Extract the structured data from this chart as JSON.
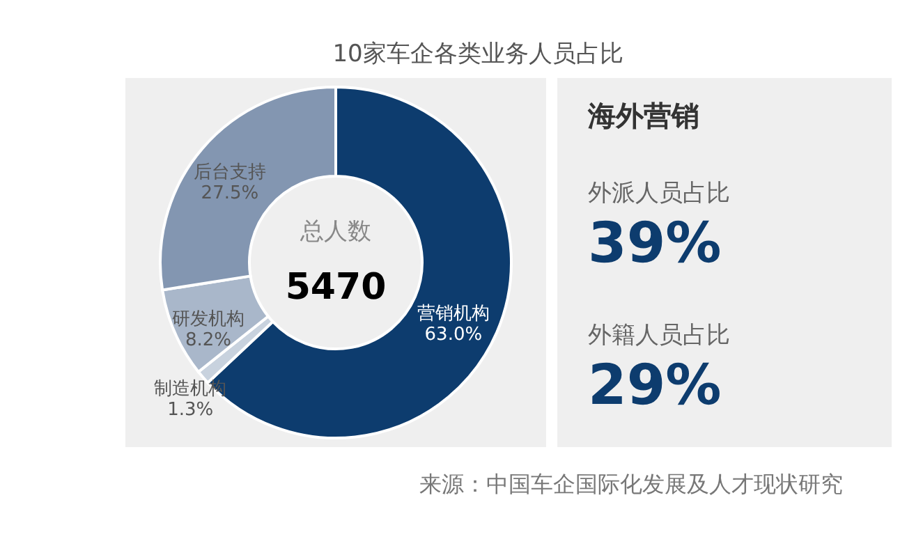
{
  "chart_data": [
    {
      "type": "donut",
      "title": "10家车企各类业务人员占比",
      "categories": [
        "营销机构",
        "制造机构",
        "研发机构",
        "后台支持"
      ],
      "values": [
        63.0,
        1.3,
        8.2,
        27.5
      ],
      "colors": [
        "#0d3c6e",
        "#c8d2de",
        "#a9b7ca",
        "#8396b1"
      ],
      "value_labels": [
        "63.0%",
        "1.3%",
        "8.2%",
        "27.5%"
      ],
      "annotations": [
        "总人数",
        "5470",
        "来源：中国车企国际化发展及人才现状研究"
      ]
    },
    {
      "type": "other",
      "title": "海外营销",
      "annotations": [
        "外派人员占比",
        "39%",
        "外籍人员占比",
        "29%"
      ]
    }
  ]
}
